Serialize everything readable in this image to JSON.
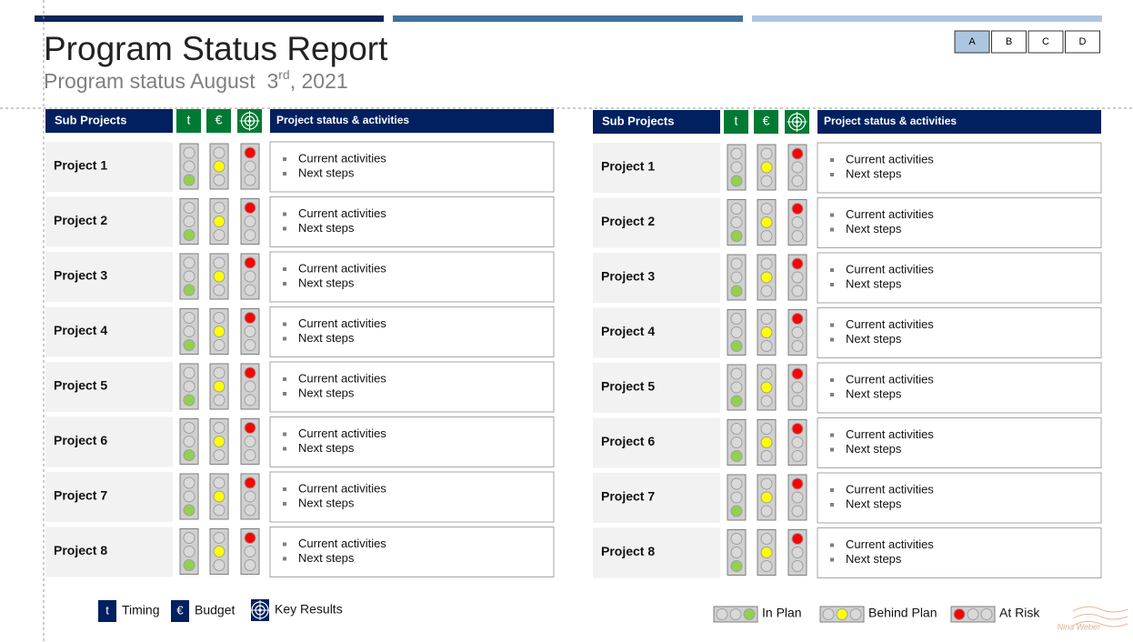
{
  "header": {
    "title": "Program Status Report",
    "subtitle": {
      "text": "Program status August  3",
      "superscript": "rd",
      "suffix": ", 2021"
    }
  },
  "tabs": [
    "A",
    "B",
    "C",
    "D"
  ],
  "tables": [
    {
      "columns": [
        "Sub Projects",
        "t",
        "€",
        "Project status & activities"
      ],
      "rows": [
        {
          "name": "Project 1",
          "items": [
            "Current activities",
            "Next steps"
          ]
        },
        {
          "name": "Project 2",
          "items": [
            "Current activities",
            "Next steps"
          ]
        },
        {
          "name": "Project 3",
          "items": [
            "Current activities",
            "Next steps"
          ]
        },
        {
          "name": "Project 4",
          "items": [
            "Current activities",
            "Next steps"
          ]
        },
        {
          "name": "Project 5",
          "items": [
            "Current activities",
            "Next steps"
          ]
        },
        {
          "name": "Project 6",
          "items": [
            "Current activities",
            "Next steps"
          ]
        },
        {
          "name": "Project 7",
          "items": [
            "Current activities",
            "Next steps"
          ]
        },
        {
          "name": "Project 8",
          "items": [
            "Current activities",
            "Next steps"
          ]
        }
      ]
    },
    {
      "columns": [
        "Sub Projects",
        "t",
        "€",
        "Project status & activities"
      ],
      "rows": [
        {
          "name": "Project 1",
          "items": [
            "Current activities",
            "Next steps"
          ]
        },
        {
          "name": "Project 2",
          "items": [
            "Current activities",
            "Next steps"
          ]
        },
        {
          "name": "Project 3",
          "items": [
            "Current activities",
            "Next steps"
          ]
        },
        {
          "name": "Project 4",
          "items": [
            "Current activities",
            "Next steps"
          ]
        },
        {
          "name": "Project 5",
          "items": [
            "Current activities",
            "Next steps"
          ]
        },
        {
          "name": "Project 6",
          "items": [
            "Current activities",
            "Next steps"
          ]
        },
        {
          "name": "Project 7",
          "items": [
            "Current activities",
            "Next steps"
          ]
        },
        {
          "name": "Project 8",
          "items": [
            "Current activities",
            "Next steps"
          ]
        }
      ]
    }
  ],
  "legend": {
    "icons": [
      {
        "symbol": "t",
        "label": "Timing"
      },
      {
        "symbol": "€",
        "label": "Budget"
      },
      {
        "label": "Key Results"
      }
    ],
    "lights": [
      "In Plan",
      "Behind Plan",
      "At Risk"
    ]
  },
  "logo": "Nina Weber"
}
